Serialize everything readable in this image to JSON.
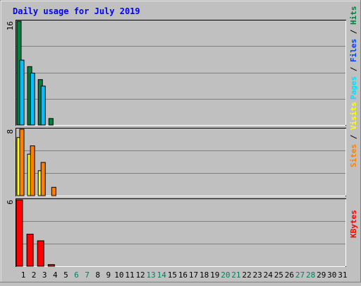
{
  "chart_data": {
    "type": "bar",
    "title": "Daily usage for July 2019",
    "days": [
      "1",
      "2",
      "3",
      "4",
      "5",
      "6",
      "7",
      "8",
      "9",
      "10",
      "11",
      "12",
      "13",
      "14",
      "15",
      "16",
      "17",
      "18",
      "19",
      "20",
      "21",
      "22",
      "23",
      "24",
      "25",
      "26",
      "27",
      "28",
      "29",
      "30",
      "31"
    ],
    "weekend_days": [
      "6",
      "7",
      "13",
      "14",
      "20",
      "21",
      "27",
      "28"
    ],
    "panels": [
      {
        "id": "hits-panel",
        "ymax": 16,
        "ymax_label": "16",
        "series": [
          {
            "name": "Hits",
            "color": "#008040",
            "values": [
              16,
              9,
              7,
              1
            ]
          },
          {
            "name": "Files",
            "color": "#00c0ff",
            "values": [
              10,
              8,
              6,
              0
            ]
          },
          {
            "name": "Pages",
            "color": "#00e0ff",
            "values": [
              0,
              0,
              0,
              0
            ]
          }
        ],
        "side_labels": [
          {
            "text": "Pages",
            "color": "#00e0ff"
          },
          {
            "text": " / ",
            "color": "#000000"
          },
          {
            "text": "Files",
            "color": "#0040ff"
          },
          {
            "text": " / ",
            "color": "#000000"
          },
          {
            "text": "Hits",
            "color": "#008040"
          }
        ]
      },
      {
        "id": "visits-panel",
        "ymax": 8,
        "ymax_label": "8",
        "series": [
          {
            "name": "Visits",
            "color": "#ffff00",
            "values": [
              7,
              5,
              3,
              0
            ]
          },
          {
            "name": "Sites",
            "color": "#ff8000",
            "values": [
              8,
              6,
              4,
              1
            ]
          }
        ],
        "side_labels": [
          {
            "text": "Sites",
            "color": "#ff8000"
          },
          {
            "text": " / ",
            "color": "#000000"
          },
          {
            "text": "Visits",
            "color": "#ffff00"
          }
        ]
      },
      {
        "id": "kbytes-panel",
        "ymax": 6,
        "ymax_label": "6",
        "series": [
          {
            "name": "KBytes",
            "color": "#ff0000",
            "values": [
              6,
              2.9,
              2.3,
              0.15
            ]
          }
        ],
        "side_labels": [
          {
            "text": "KBytes",
            "color": "#ff0000"
          }
        ]
      }
    ],
    "grid": true
  },
  "colors": {
    "background": "#c0c0c0",
    "title": "#0000ff",
    "weekday_label": "#000000",
    "weekend_label": "#00805c"
  }
}
